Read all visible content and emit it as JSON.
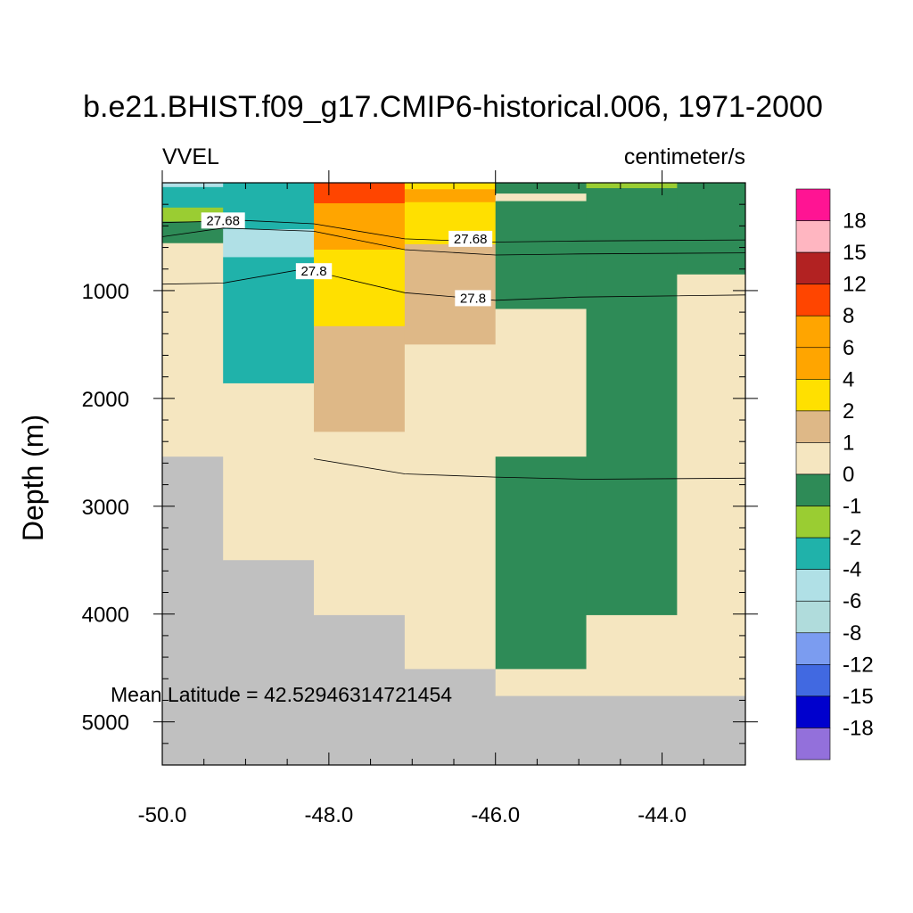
{
  "chart_data": {
    "type": "heatmap",
    "title": "b.e21.BHIST.f09_g17.CMIP6-historical.006, 1971-2000",
    "left_subtitle": "VVEL",
    "right_subtitle": "centimeter/s",
    "ylabel": "Depth (m)",
    "xlabel": "",
    "xlim": [
      -50.0,
      -43.0
    ],
    "ylim": [
      5400,
      0
    ],
    "x_ticks": [
      -50.0,
      -48.0,
      -46.0,
      -44.0
    ],
    "x_tick_labels": [
      "-50.0",
      "-48.0",
      "-46.0",
      "-44.0"
    ],
    "y_ticks": [
      1000,
      2000,
      3000,
      4000,
      5000
    ],
    "y_tick_labels": [
      "1000",
      "2000",
      "3000",
      "4000",
      "5000"
    ],
    "annotation": "Mean Latitude = 42.52946314721454",
    "colorbar": {
      "labels": [
        "18",
        "15",
        "12",
        "8",
        "6",
        "4",
        "2",
        "1",
        "0",
        "-1",
        "-2",
        "-4",
        "-6",
        "-8",
        "-12",
        "-15",
        "-18"
      ],
      "colors": [
        "#ff1493",
        "#ffb6c1",
        "#b22222",
        "#ff4500",
        "#ffa500",
        "#ffa500",
        "#ffe000",
        "#deb887",
        "#f5e6c0",
        "#2e8b57",
        "#9acd32",
        "#20b2aa",
        "#b0e0e6",
        "#b0dcdc",
        "#7b9cf0",
        "#4169e1",
        "#0000cd",
        "#9370db"
      ]
    },
    "cells": [
      {
        "x": [
          -50.0,
          -49.27
        ],
        "y": [
          0,
          40
        ],
        "color": "#b0e0e6"
      },
      {
        "x": [
          -50.0,
          -49.27
        ],
        "y": [
          40,
          230
        ],
        "color": "#20b2aa"
      },
      {
        "x": [
          -50.0,
          -49.27
        ],
        "y": [
          230,
          360
        ],
        "color": "#9acd32"
      },
      {
        "x": [
          -50.0,
          -49.27
        ],
        "y": [
          360,
          560
        ],
        "color": "#2e8b57"
      },
      {
        "x": [
          -50.0,
          -49.27
        ],
        "y": [
          560,
          2540
        ],
        "color": "#f5e6c0"
      },
      {
        "x": [
          -50.0,
          -49.27
        ],
        "y": [
          2540,
          5400
        ],
        "color": "#c0c0c0"
      },
      {
        "x": [
          -49.27,
          -48.18
        ],
        "y": [
          0,
          430
        ],
        "color": "#20b2aa"
      },
      {
        "x": [
          -49.27,
          -48.18
        ],
        "y": [
          430,
          690
        ],
        "color": "#b0e0e6"
      },
      {
        "x": [
          -49.27,
          -48.18
        ],
        "y": [
          690,
          1860
        ],
        "color": "#20b2aa"
      },
      {
        "x": [
          -49.27,
          -48.18
        ],
        "y": [
          1860,
          3500
        ],
        "color": "#f5e6c0"
      },
      {
        "x": [
          -49.27,
          -48.18
        ],
        "y": [
          3500,
          5400
        ],
        "color": "#c0c0c0"
      },
      {
        "x": [
          -48.18,
          -47.09
        ],
        "y": [
          0,
          190
        ],
        "color": "#ff4500"
      },
      {
        "x": [
          -48.18,
          -47.09
        ],
        "y": [
          190,
          620
        ],
        "color": "#ffa500"
      },
      {
        "x": [
          -48.18,
          -47.09
        ],
        "y": [
          620,
          1330
        ],
        "color": "#ffe000"
      },
      {
        "x": [
          -48.18,
          -47.09
        ],
        "y": [
          1330,
          2310
        ],
        "color": "#deb887"
      },
      {
        "x": [
          -48.18,
          -47.09
        ],
        "y": [
          2310,
          4010
        ],
        "color": "#f5e6c0"
      },
      {
        "x": [
          -48.18,
          -47.09
        ],
        "y": [
          4010,
          5400
        ],
        "color": "#c0c0c0"
      },
      {
        "x": [
          -47.09,
          -46.0
        ],
        "y": [
          0,
          60
        ],
        "color": "#ffe000"
      },
      {
        "x": [
          -47.09,
          -46.0
        ],
        "y": [
          60,
          180
        ],
        "color": "#ffa500"
      },
      {
        "x": [
          -47.09,
          -46.0
        ],
        "y": [
          180,
          570
        ],
        "color": "#ffe000"
      },
      {
        "x": [
          -47.09,
          -46.0
        ],
        "y": [
          570,
          1500
        ],
        "color": "#deb887"
      },
      {
        "x": [
          -47.09,
          -46.0
        ],
        "y": [
          1500,
          4510
        ],
        "color": "#f5e6c0"
      },
      {
        "x": [
          -47.09,
          -46.0
        ],
        "y": [
          4510,
          5400
        ],
        "color": "#c0c0c0"
      },
      {
        "x": [
          -46.0,
          -44.91
        ],
        "y": [
          0,
          100
        ],
        "color": "#2e8b57"
      },
      {
        "x": [
          -46.0,
          -44.91
        ],
        "y": [
          100,
          170
        ],
        "color": "#f5e6c0"
      },
      {
        "x": [
          -46.0,
          -44.91
        ],
        "y": [
          170,
          1170
        ],
        "color": "#2e8b57"
      },
      {
        "x": [
          -46.0,
          -44.91
        ],
        "y": [
          1170,
          2540
        ],
        "color": "#f5e6c0"
      },
      {
        "x": [
          -46.0,
          -44.91
        ],
        "y": [
          2540,
          4510
        ],
        "color": "#2e8b57"
      },
      {
        "x": [
          -46.0,
          -44.91
        ],
        "y": [
          4510,
          4760
        ],
        "color": "#f5e6c0"
      },
      {
        "x": [
          -46.0,
          -44.91
        ],
        "y": [
          4760,
          5400
        ],
        "color": "#c0c0c0"
      },
      {
        "x": [
          -44.91,
          -43.82
        ],
        "y": [
          0,
          50
        ],
        "color": "#9acd32"
      },
      {
        "x": [
          -44.91,
          -43.82
        ],
        "y": [
          50,
          4010
        ],
        "color": "#2e8b57"
      },
      {
        "x": [
          -44.91,
          -43.82
        ],
        "y": [
          4010,
          4760
        ],
        "color": "#f5e6c0"
      },
      {
        "x": [
          -44.91,
          -43.82
        ],
        "y": [
          4760,
          5400
        ],
        "color": "#c0c0c0"
      },
      {
        "x": [
          -43.82,
          -43.0
        ],
        "y": [
          0,
          850
        ],
        "color": "#2e8b57"
      },
      {
        "x": [
          -43.82,
          -43.0
        ],
        "y": [
          850,
          4760
        ],
        "color": "#f5e6c0"
      },
      {
        "x": [
          -43.82,
          -43.0
        ],
        "y": [
          4760,
          5400
        ],
        "color": "#c0c0c0"
      }
    ],
    "contours": [
      {
        "label": "27.68",
        "points": [
          [
            -50.0,
            370
          ],
          [
            -49.0,
            350
          ],
          [
            -48.18,
            380
          ],
          [
            -47.09,
            520
          ],
          [
            -46.0,
            550
          ],
          [
            -45.0,
            540
          ],
          [
            -43.0,
            530
          ]
        ],
        "label_at": [
          -49.27,
          350
        ],
        "label_at_2": [
          -46.3,
          520
        ]
      },
      {
        "label": "",
        "points": [
          [
            -50.0,
            500
          ],
          [
            -49.27,
            420
          ],
          [
            -48.18,
            450
          ],
          [
            -47.09,
            620
          ],
          [
            -46.0,
            670
          ],
          [
            -45.0,
            660
          ],
          [
            -43.0,
            650
          ]
        ]
      },
      {
        "label": "27.8",
        "points": [
          [
            -50.0,
            940
          ],
          [
            -49.27,
            930
          ],
          [
            -48.3,
            800
          ],
          [
            -47.09,
            1020
          ],
          [
            -46.0,
            1090
          ],
          [
            -45.0,
            1060
          ],
          [
            -43.0,
            1040
          ]
        ],
        "label_at": [
          -48.18,
          820
        ],
        "label_at_2": [
          -46.27,
          1070
        ]
      },
      {
        "label": "",
        "points": [
          [
            -48.18,
            2560
          ],
          [
            -47.09,
            2700
          ],
          [
            -46.0,
            2730
          ],
          [
            -44.91,
            2750
          ],
          [
            -43.0,
            2740
          ]
        ]
      }
    ]
  }
}
